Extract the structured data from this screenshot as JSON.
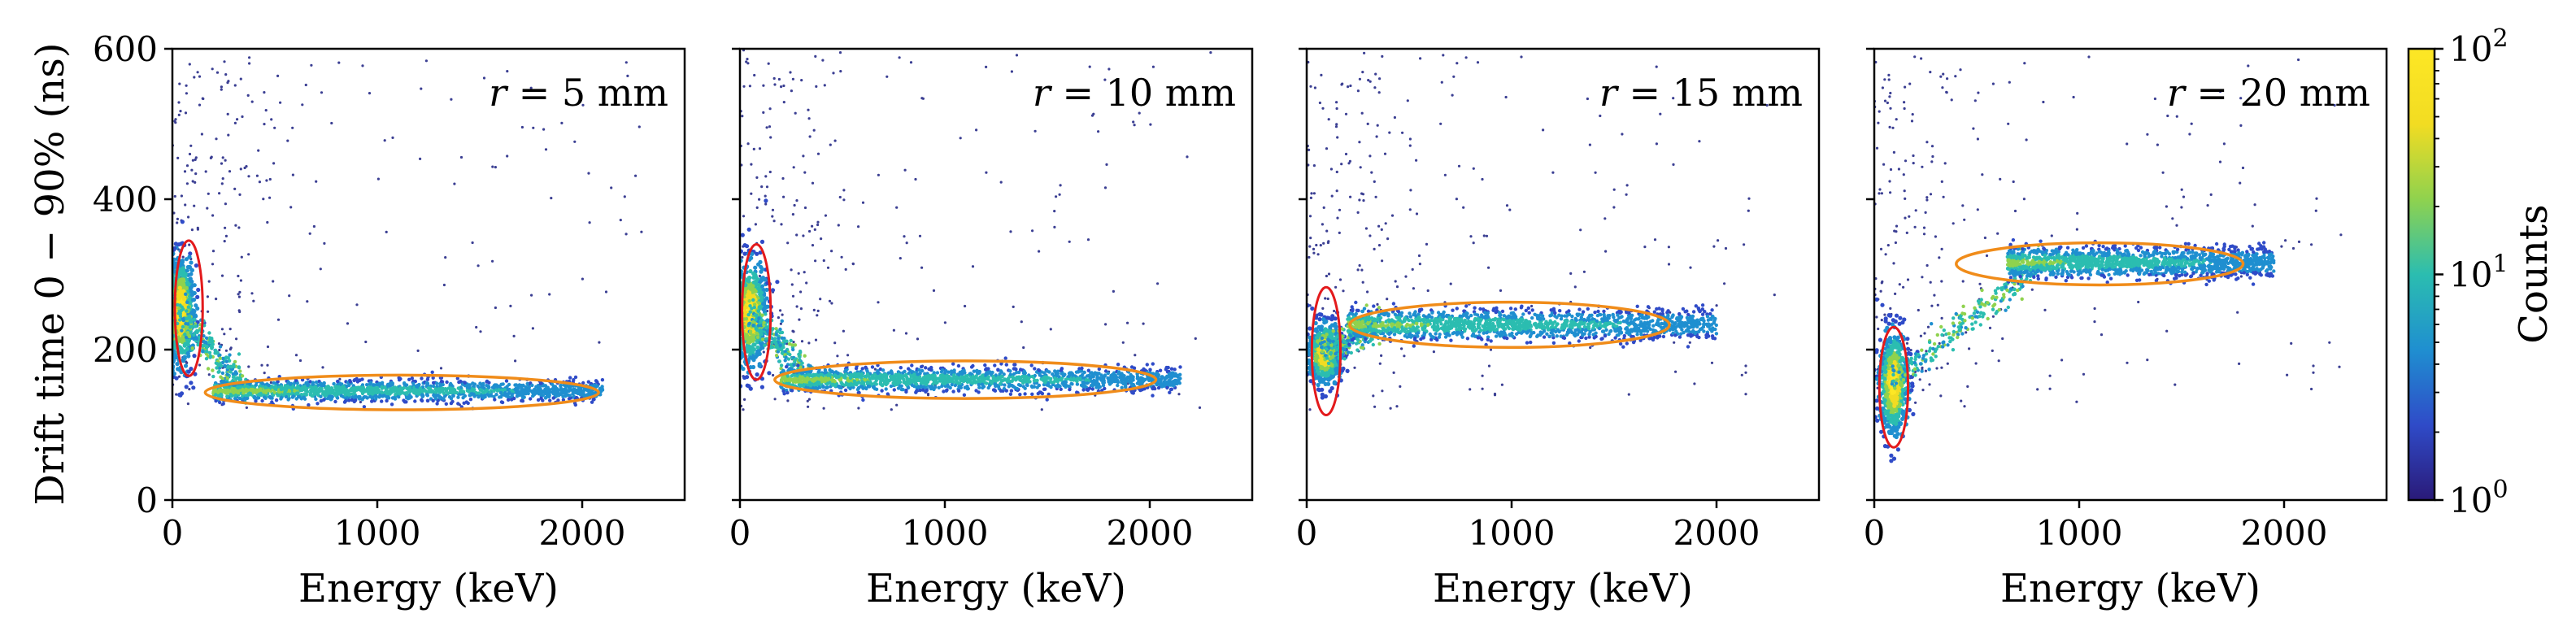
{
  "chart_data": {
    "type": "scatter",
    "subtype": "2d-density-scatter",
    "shared": {
      "xlabel": "Energy (keV)",
      "ylabel": "Drift time 0 − 90% (ns)",
      "xlim": [
        0,
        2500
      ],
      "ylim": [
        0,
        600
      ],
      "xticks": [
        0,
        1000,
        2000
      ],
      "yticks": [
        0,
        200,
        400,
        600
      ],
      "grid": false,
      "colorbar": {
        "label": "Counts",
        "scale": "log",
        "range": [
          1,
          100
        ],
        "tick_labels": [
          {
            "value": 1,
            "base": "10",
            "exp": "0"
          },
          {
            "value": 10,
            "base": "10",
            "exp": "1"
          },
          {
            "value": 100,
            "base": "10",
            "exp": "2"
          }
        ],
        "colors": [
          "#2a1a78",
          "#2f4bc8",
          "#1f8fd0",
          "#2bbdb0",
          "#8fd24e",
          "#f2dc22",
          "#fde725"
        ]
      }
    },
    "panels": [
      {
        "name": "r5",
        "annotation_var": "r",
        "annotation_value": "= 5 mm",
        "cluster_peak": {
          "energy_center": 40,
          "energy_spread": 35,
          "drift_center": 250,
          "drift_spread": 38
        },
        "band": {
          "energy_start": 200,
          "energy_end": 2100,
          "drift_center": 145,
          "drift_spread": 7
        },
        "red_ellipse": {
          "center": [
            80,
            255
          ],
          "radius": [
            68,
            90
          ]
        },
        "orange_ellipse": {
          "center": [
            1120,
            143
          ],
          "radius": [
            960,
            23
          ]
        }
      },
      {
        "name": "r10",
        "annotation_var": "r",
        "annotation_value": "= 10 mm",
        "cluster_peak": {
          "energy_center": 50,
          "energy_spread": 40,
          "drift_center": 248,
          "drift_spread": 35
        },
        "band": {
          "energy_start": 200,
          "energy_end": 2150,
          "drift_center": 160,
          "drift_spread": 8
        },
        "red_ellipse": {
          "center": [
            80,
            250
          ],
          "radius": [
            70,
            90
          ]
        },
        "orange_ellipse": {
          "center": [
            1100,
            160
          ],
          "radius": [
            930,
            25
          ]
        }
      },
      {
        "name": "r15",
        "annotation_var": "r",
        "annotation_value": "= 15 mm",
        "cluster_peak": {
          "energy_center": 90,
          "energy_spread": 40,
          "drift_center": 195,
          "drift_spread": 20
        },
        "band": {
          "energy_start": 200,
          "energy_end": 2000,
          "drift_center": 233,
          "drift_spread": 10
        },
        "red_ellipse": {
          "center": [
            95,
            198
          ],
          "radius": [
            70,
            85
          ]
        },
        "orange_ellipse": {
          "center": [
            990,
            233
          ],
          "radius": [
            780,
            30
          ]
        }
      },
      {
        "name": "r20",
        "annotation_var": "r",
        "annotation_value": "= 20 mm",
        "cluster_peak": {
          "energy_center": 95,
          "energy_spread": 35,
          "drift_center": 155,
          "drift_spread": 35
        },
        "band": {
          "energy_start": 650,
          "energy_end": 1950,
          "drift_center": 316,
          "drift_spread": 10
        },
        "red_ellipse": {
          "center": [
            95,
            150
          ],
          "radius": [
            70,
            80
          ]
        },
        "orange_ellipse": {
          "center": [
            1100,
            314
          ],
          "radius": [
            700,
            28
          ]
        }
      }
    ]
  }
}
